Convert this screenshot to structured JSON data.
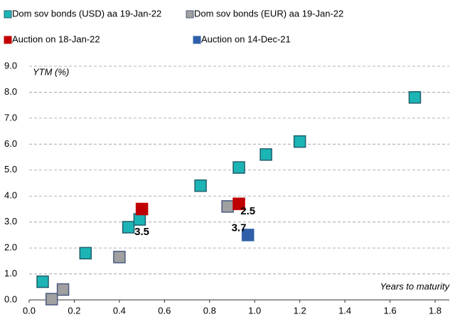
{
  "chart_data": {
    "type": "scatter",
    "xlabel": "Years to maturity",
    "ylabel": "YTM (%)",
    "series": [
      {
        "name": "Dom sov bonds (USD) aa 19-Jan-22",
        "color": "#1cb5b5",
        "stroke": "#1f5f6b",
        "x": [
          0.06,
          0.25,
          0.44,
          0.49,
          0.76,
          0.93,
          1.05,
          1.2,
          1.71
        ],
        "values": [
          0.7,
          1.8,
          2.8,
          3.1,
          4.4,
          5.1,
          5.6,
          6.1,
          7.8
        ]
      },
      {
        "name": "Dom sov bonds (EUR) aa 19-Jan-22",
        "color": "#a0a0a0",
        "stroke": "#4a5a80",
        "x": [
          0.1,
          0.15,
          0.4,
          0.88
        ],
        "values": [
          0.03,
          0.4,
          1.65,
          3.6
        ]
      },
      {
        "name": "Auction on 18-Jan-22",
        "color": "#c00000",
        "stroke": "#c00000",
        "x": [
          0.5,
          0.93
        ],
        "values": [
          3.5,
          3.7
        ]
      },
      {
        "name": "Auction on 14-Dec-21",
        "color": "#2e5fa8",
        "stroke": "#2e5fa8",
        "x": [
          0.97
        ],
        "values": [
          2.5
        ]
      }
    ],
    "annotations": [
      {
        "text": "3.5",
        "x": 0.5,
        "y": 2.6
      },
      {
        "text": "2.5",
        "x": 0.97,
        "y": 3.4
      },
      {
        "text": "3.7",
        "x": 0.93,
        "y": 2.75
      }
    ],
    "xlim": [
      0,
      1.8
    ],
    "xticks": [
      {
        "value": 0,
        "label": "0.0"
      },
      {
        "value": 0.2,
        "label": "0.2"
      },
      {
        "value": 0.4,
        "label": "0.4"
      },
      {
        "value": 0.6,
        "label": "0.6"
      },
      {
        "value": 0.8,
        "label": "0.8"
      },
      {
        "value": 1,
        "label": "1.0"
      },
      {
        "value": 1.2,
        "label": "1.2"
      },
      {
        "value": 1.4,
        "label": "1.4"
      },
      {
        "value": 1.6,
        "label": "1.6"
      },
      {
        "value": 1.8,
        "label": "1.8"
      }
    ],
    "ylim": [
      0,
      9
    ],
    "yticks": [
      {
        "value": 0,
        "label": "0.0"
      },
      {
        "value": 1,
        "label": "1.0"
      },
      {
        "value": 2,
        "label": "2.0"
      },
      {
        "value": 3,
        "label": "3.0"
      },
      {
        "value": 4,
        "label": "4.0"
      },
      {
        "value": 5,
        "label": "5.0"
      },
      {
        "value": 6,
        "label": "6.0"
      },
      {
        "value": 7,
        "label": "7.0"
      },
      {
        "value": 8,
        "label": "8.0"
      },
      {
        "value": 9,
        "label": "9.0"
      }
    ],
    "grid": true,
    "legend": "top"
  }
}
